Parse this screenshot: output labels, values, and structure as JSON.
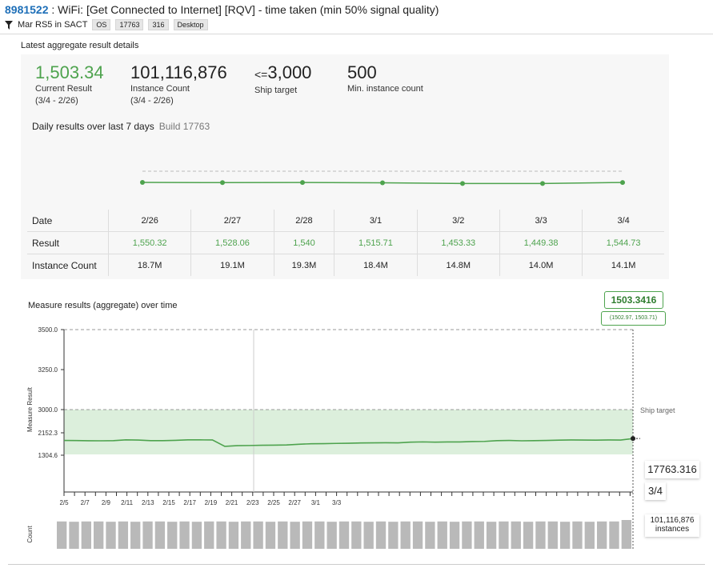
{
  "header": {
    "id": "8981522",
    "title": " : WiFi: [Get Connected to Internet] [RQV] - time taken (min 50% signal quality)",
    "filter": "Mar RS5 in SACT",
    "tags": [
      "OS",
      "17763",
      "316",
      "Desktop"
    ]
  },
  "latest": {
    "title": "Latest aggregate result details",
    "current_result": {
      "value": "1,503.34",
      "label": "Current Result",
      "range": "(3/4 - 2/26)"
    },
    "instance_count": {
      "value": "101,116,876",
      "label": "Instance Count",
      "range": "(3/4 - 2/26)"
    },
    "ship_target": {
      "prefix": "<=",
      "value": "3,000",
      "label": "Ship target"
    },
    "min_instance": {
      "value": "500",
      "label": "Min. instance count"
    },
    "daily_label": "Daily results over last 7 days",
    "build_label": "Build 17763",
    "row_labels": {
      "date": "Date",
      "result": "Result",
      "count": "Instance Count"
    },
    "days": [
      {
        "date": "2/26",
        "result": "1,550.32",
        "count": "18.7M"
      },
      {
        "date": "2/27",
        "result": "1,528.06",
        "count": "19.1M"
      },
      {
        "date": "2/28",
        "result": "1,540",
        "count": "19.3M"
      },
      {
        "date": "3/1",
        "result": "1,515.71",
        "count": "18.4M"
      },
      {
        "date": "3/2",
        "result": "1,453.33",
        "count": "14.8M"
      },
      {
        "date": "3/3",
        "result": "1,449.38",
        "count": "14.0M"
      },
      {
        "date": "3/4",
        "result": "1,544.73",
        "count": "14.1M"
      }
    ]
  },
  "measure": {
    "title": "Measure results (aggregate) over time",
    "badge_value": "1503.3416",
    "badge_interval": "(1502.97, 1503.71)",
    "ship_target_label": "Ship target",
    "build_box": "17763.316",
    "date_box": "3/4",
    "instances_value": "101,116,876",
    "instances_label": "instances",
    "count_axis_label": "Count"
  },
  "chart_data": {
    "type": "line",
    "ylabel": "Measure Result",
    "y_ticks": [
      "3500.0",
      "3250.0",
      "3000.0",
      "2152.3",
      "1304.6"
    ],
    "x_tick_labels": [
      "2/5",
      "2/7",
      "2/9",
      "2/11",
      "2/13",
      "2/15",
      "2/17",
      "2/19",
      "2/21",
      "2/23",
      "2/25",
      "2/27",
      "3/1",
      "3/3"
    ],
    "ship_target": 3000,
    "series": [
      {
        "values": [
          1480,
          1479,
          1477,
          1476,
          1478,
          1487,
          1485,
          1478,
          1478,
          1481,
          1487,
          1487,
          1486,
          1410,
          1418,
          1420,
          1423,
          1424,
          1427,
          1435,
          1441,
          1442,
          1445,
          1447,
          1450,
          1452,
          1453,
          1452,
          1460,
          1463,
          1460,
          1462,
          1462,
          1467,
          1469,
          1478,
          1480,
          1476,
          1478,
          1480,
          1484,
          1486,
          1485,
          1484,
          1486,
          1485,
          1503
        ]
      }
    ],
    "daily_counts_relative": [
      0.95,
      0.94,
      0.95,
      0.95,
      0.94,
      0.95,
      0.94,
      0.95,
      0.95,
      0.94,
      0.95,
      0.94,
      0.95,
      0.95,
      0.94,
      0.95,
      0.95,
      0.94,
      0.95,
      0.94,
      0.95,
      0.95,
      0.94,
      0.95,
      0.95,
      0.94,
      0.95,
      0.94,
      0.95,
      0.95,
      0.94,
      0.95,
      0.94,
      0.95,
      0.95,
      0.94,
      0.95,
      0.95,
      0.94,
      0.95,
      0.95,
      0.94,
      0.95,
      0.94,
      0.95,
      0.95,
      1.0
    ]
  }
}
